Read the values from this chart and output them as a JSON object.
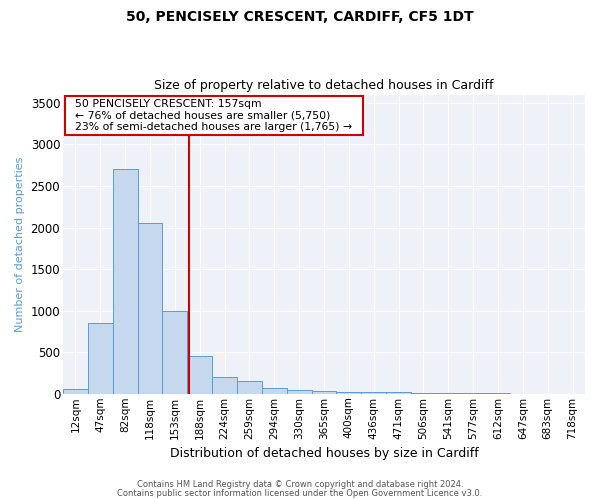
{
  "title1": "50, PENCISELY CRESCENT, CARDIFF, CF5 1DT",
  "title2": "Size of property relative to detached houses in Cardiff",
  "xlabel": "Distribution of detached houses by size in Cardiff",
  "ylabel": "Number of detached properties",
  "categories": [
    "12sqm",
    "47sqm",
    "82sqm",
    "118sqm",
    "153sqm",
    "188sqm",
    "224sqm",
    "259sqm",
    "294sqm",
    "330sqm",
    "365sqm",
    "400sqm",
    "436sqm",
    "471sqm",
    "506sqm",
    "541sqm",
    "577sqm",
    "612sqm",
    "647sqm",
    "683sqm",
    "718sqm"
  ],
  "values": [
    55,
    850,
    2700,
    2050,
    1000,
    450,
    205,
    150,
    70,
    50,
    35,
    25,
    20,
    18,
    8,
    6,
    5,
    4,
    3,
    2,
    1
  ],
  "bar_color": "#c5d8ed",
  "bar_edge_color": "#5b9bd5",
  "red_line_x": 4.57,
  "annotation_text": "  50 PENCISELY CRESCENT: 157sqm  \n  ← 76% of detached houses are smaller (5,750)  \n  23% of semi-detached houses are larger (1,765) →  ",
  "annotation_box_color": "#ffffff",
  "annotation_box_edge_color": "#cc0000",
  "red_line_color": "#cc0000",
  "footer1": "Contains HM Land Registry data © Crown copyright and database right 2024.",
  "footer2": "Contains public sector information licensed under the Open Government Licence v3.0.",
  "ylim": [
    0,
    3600
  ],
  "yticks": [
    0,
    500,
    1000,
    1500,
    2000,
    2500,
    3000,
    3500
  ],
  "bg_color": "#ffffff",
  "plot_bg_color": "#eef2f8",
  "grid_color": "#ffffff"
}
